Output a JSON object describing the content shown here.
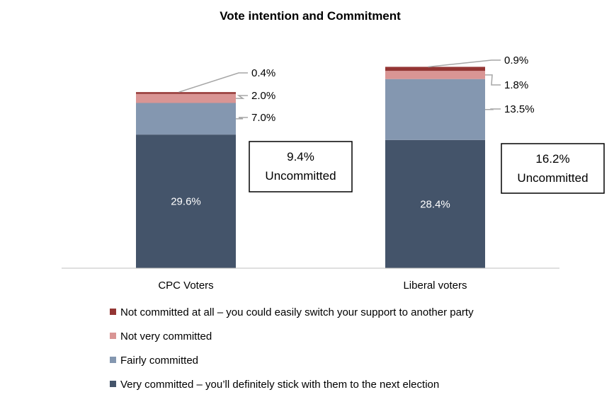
{
  "chart_data": {
    "type": "bar",
    "stacked": true,
    "title": "Vote intention and Commitment",
    "categories": [
      "CPC Voters",
      "Liberal voters"
    ],
    "series": [
      {
        "name": "Very committed – you’ll definitely stick with them to the next election",
        "color": "#44546A",
        "values": [
          29.6,
          28.4
        ],
        "labels": [
          "29.6%",
          "28.4%"
        ]
      },
      {
        "name": "Fairly committed",
        "color": "#8497B0",
        "values": [
          7.0,
          13.5
        ],
        "labels": [
          "7.0%",
          "13.5%"
        ]
      },
      {
        "name": "Not very committed",
        "color": "#D99594",
        "values": [
          2.0,
          1.8
        ],
        "labels": [
          "2.0%",
          "1.8%"
        ]
      },
      {
        "name": "Not committed at all – you could easily switch your support to another party",
        "color": "#943634",
        "values": [
          0.4,
          0.9
        ],
        "labels": [
          "0.4%",
          "0.9%"
        ]
      }
    ],
    "uncommitted_boxes": [
      {
        "value": "9.4%",
        "text": "Uncommitted"
      },
      {
        "value": "16.2%",
        "text": "Uncommitted"
      }
    ],
    "ylim": [
      0,
      45
    ],
    "grid": false,
    "legend_position": "bottom",
    "leader_line_color": "#A6A6A6"
  }
}
